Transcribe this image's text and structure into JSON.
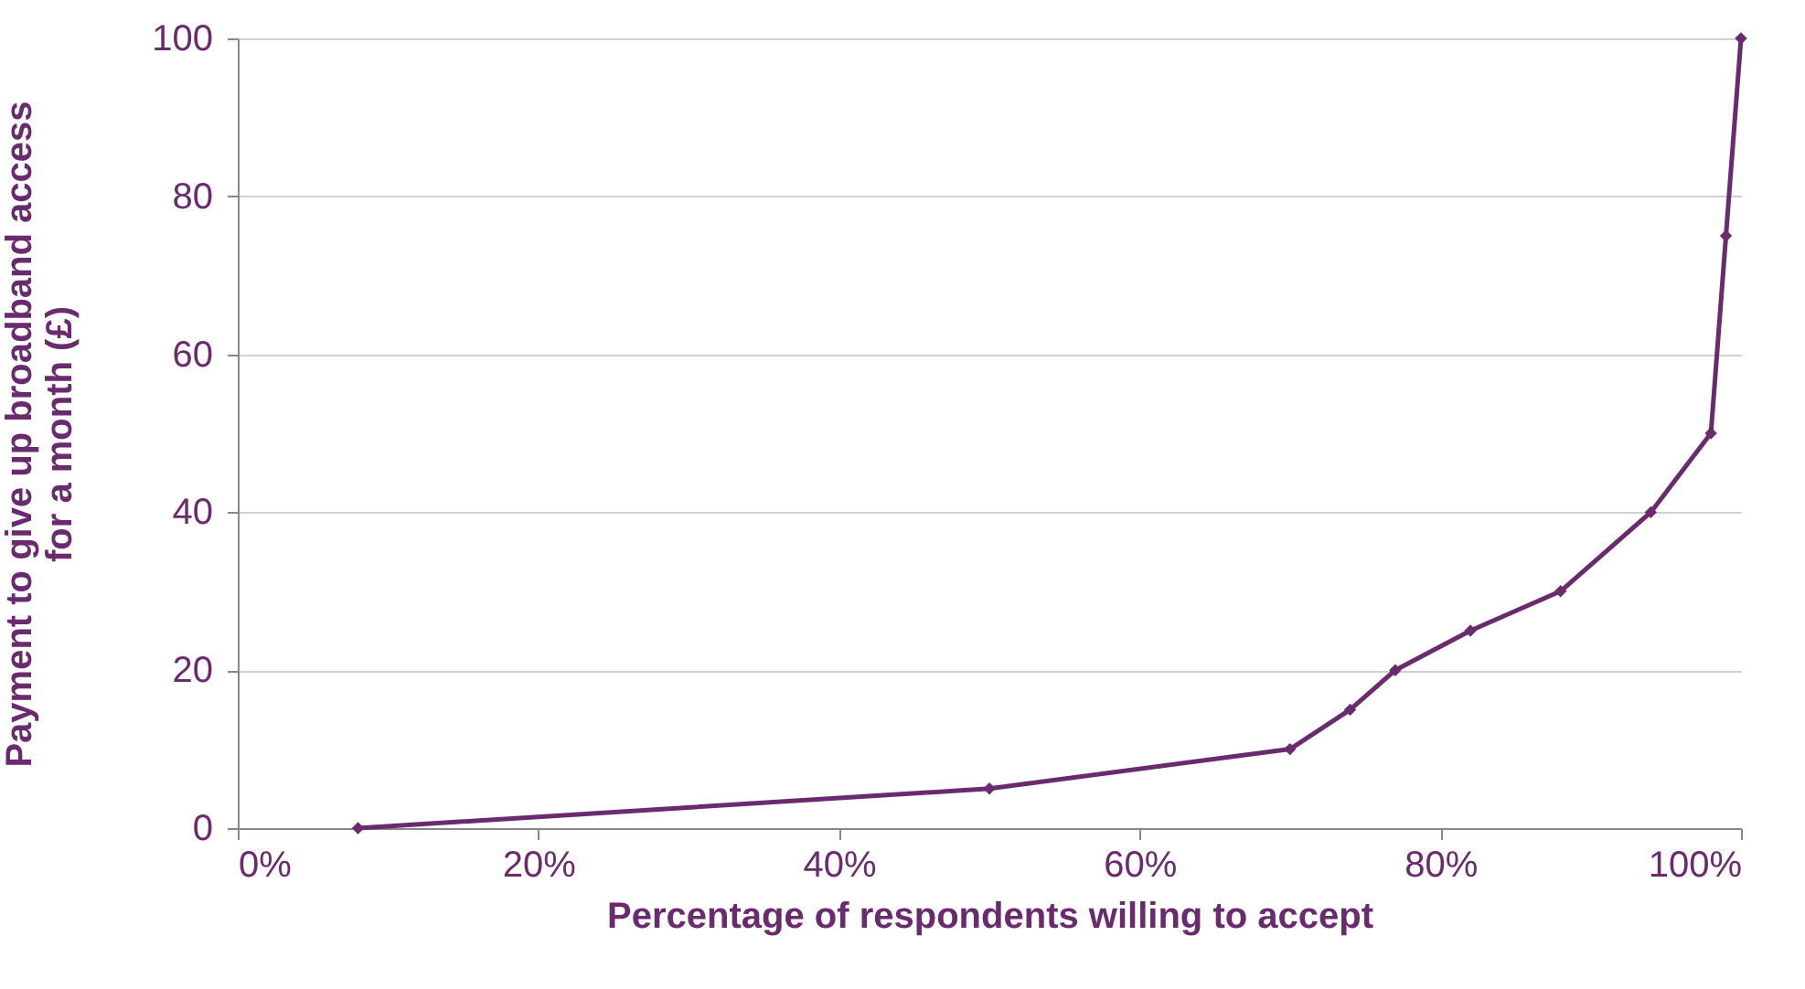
{
  "chart_data": {
    "type": "line",
    "xlabel": "Percentage of respondents willing to accept",
    "ylabel": "Payment to give up broadband access\nfor a month (£)",
    "x": [
      8,
      50,
      70,
      74,
      77,
      82,
      88,
      94,
      98,
      99,
      100
    ],
    "series": [
      {
        "color": "#6a2a6e",
        "values": [
          0,
          5,
          10,
          15,
          20,
          25,
          30,
          40,
          50,
          75,
          100
        ]
      }
    ],
    "xlim": [
      0,
      100
    ],
    "xticks": [
      {
        "value": 0,
        "label": "0%"
      },
      {
        "value": 20,
        "label": "20%"
      },
      {
        "value": 40,
        "label": "40%"
      },
      {
        "value": 60,
        "label": "60%"
      },
      {
        "value": 80,
        "label": "80%"
      },
      {
        "value": 100,
        "label": "100%"
      }
    ],
    "ylim": [
      0,
      100
    ],
    "yticks": [
      0,
      20,
      40,
      60,
      80,
      100
    ],
    "grid": "y",
    "marker": "diamond",
    "line_style": "solid"
  }
}
